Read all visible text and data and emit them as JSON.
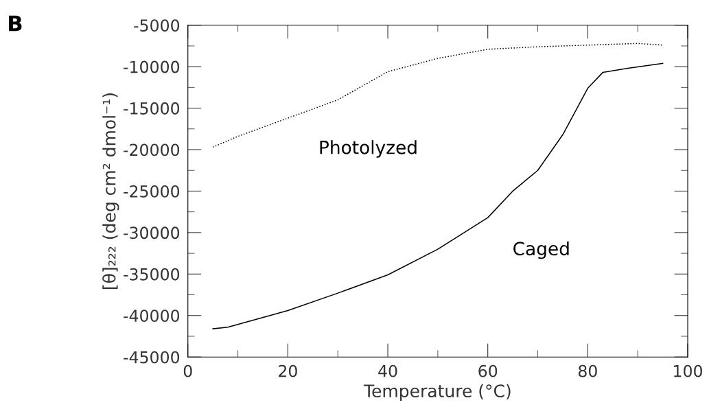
{
  "chart_data": {
    "type": "line",
    "title": "B",
    "xlabel": "Temperature (°C)",
    "ylabel": "[θ]₂₂₂ (deg cm² dmol⁻¹)",
    "series": [
      {
        "name": "Photolyzed",
        "color": "#000000",
        "line_style": "dotted",
        "x": [
          5,
          10,
          20,
          30,
          40,
          50,
          60,
          70,
          80,
          90,
          95
        ],
        "values": [
          -19700,
          -18400,
          -16200,
          -14000,
          -10600,
          -9000,
          -7900,
          -7600,
          -7400,
          -7200,
          -7400
        ]
      },
      {
        "name": "Caged",
        "color": "#000000",
        "line_style": "solid",
        "x": [
          5,
          8,
          20,
          30,
          40,
          50,
          60,
          65,
          70,
          75,
          80,
          83,
          88,
          95
        ],
        "values": [
          -41600,
          -41400,
          -39400,
          -37300,
          -35100,
          -32000,
          -28200,
          -25000,
          -22500,
          -18200,
          -12600,
          -10700,
          -10200,
          -9600
        ]
      }
    ],
    "xlim": [
      0,
      100
    ],
    "xticks": [
      0,
      20,
      40,
      60,
      80,
      100
    ],
    "ylim": [
      -45000,
      -5000
    ],
    "yticks": [
      -45000,
      -40000,
      -35000,
      -30000,
      -25000,
      -20000,
      -15000,
      -10000,
      -5000
    ],
    "grid": false,
    "legend": false,
    "marker": "none"
  }
}
